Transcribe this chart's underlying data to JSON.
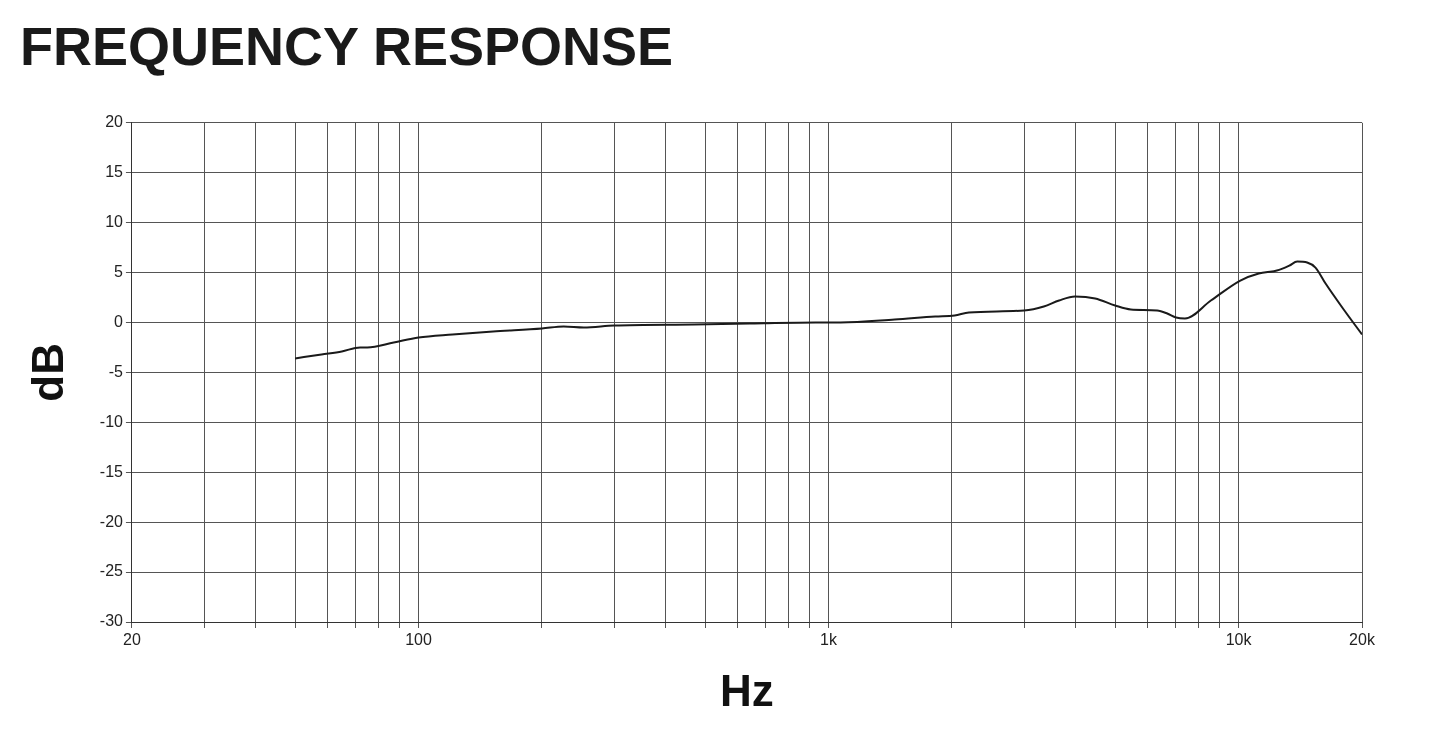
{
  "chart_data": {
    "type": "line",
    "title": "FREQUENCY RESPONSE",
    "xlabel": "Hz",
    "ylabel": "dB",
    "log": "x",
    "grid": true,
    "legend": false,
    "marker": "none",
    "line_style": "solid",
    "color": "#1a1a1a",
    "x": [
      50,
      58,
      65,
      72,
      75,
      87,
      100,
      121,
      152,
      200,
      226,
      253,
      300,
      470,
      660,
      930,
      1070,
      1450,
      1820,
      2030,
      2200,
      3000,
      3350,
      3650,
      3990,
      4470,
      5000,
      5460,
      6330,
      6700,
      7040,
      7400,
      8560,
      10100,
      11200,
      12400,
      13300,
      13900,
      14700,
      15400,
      16300,
      17900,
      20000
    ],
    "values": [
      -3.6,
      -3.2,
      -2.9,
      -2.5,
      -2.5,
      -2.0,
      -1.5,
      -1.2,
      -0.9,
      -0.6,
      -0.4,
      -0.5,
      -0.3,
      -0.2,
      -0.1,
      0.0,
      0.0,
      0.3,
      0.6,
      0.7,
      1.0,
      1.2,
      1.6,
      2.2,
      2.6,
      2.4,
      1.7,
      1.3,
      1.2,
      0.9,
      0.5,
      0.4,
      2.2,
      4.2,
      4.9,
      5.2,
      5.7,
      6.1,
      6.0,
      5.5,
      3.9,
      1.5,
      -1.2
    ],
    "xlim": [
      20,
      20000
    ],
    "ylim": [
      -30,
      20
    ],
    "xticks": [
      20,
      {
        "value": 30,
        "label": null
      },
      {
        "value": 40,
        "label": null
      },
      {
        "value": 50,
        "label": null
      },
      {
        "value": 60,
        "label": null
      },
      {
        "value": 70,
        "label": null
      },
      {
        "value": 80,
        "label": null
      },
      {
        "value": 90,
        "label": null
      },
      100,
      {
        "value": 200,
        "label": null
      },
      {
        "value": 300,
        "label": null
      },
      {
        "value": 400,
        "label": null
      },
      {
        "value": 500,
        "label": null
      },
      {
        "value": 600,
        "label": null
      },
      {
        "value": 700,
        "label": null
      },
      {
        "value": 800,
        "label": null
      },
      {
        "value": 900,
        "label": null
      },
      {
        "value": 1000,
        "label": "1k"
      },
      {
        "value": 2000,
        "label": null
      },
      {
        "value": 3000,
        "label": null
      },
      {
        "value": 4000,
        "label": null
      },
      {
        "value": 5000,
        "label": null
      },
      {
        "value": 6000,
        "label": null
      },
      {
        "value": 7000,
        "label": null
      },
      {
        "value": 8000,
        "label": null
      },
      {
        "value": 9000,
        "label": null
      },
      {
        "value": 10000,
        "label": "10k"
      },
      {
        "value": 20000,
        "label": "20k"
      }
    ],
    "yticks": [
      -30,
      -25,
      -20,
      -15,
      -10,
      -5,
      0,
      5,
      10,
      15,
      20
    ]
  }
}
